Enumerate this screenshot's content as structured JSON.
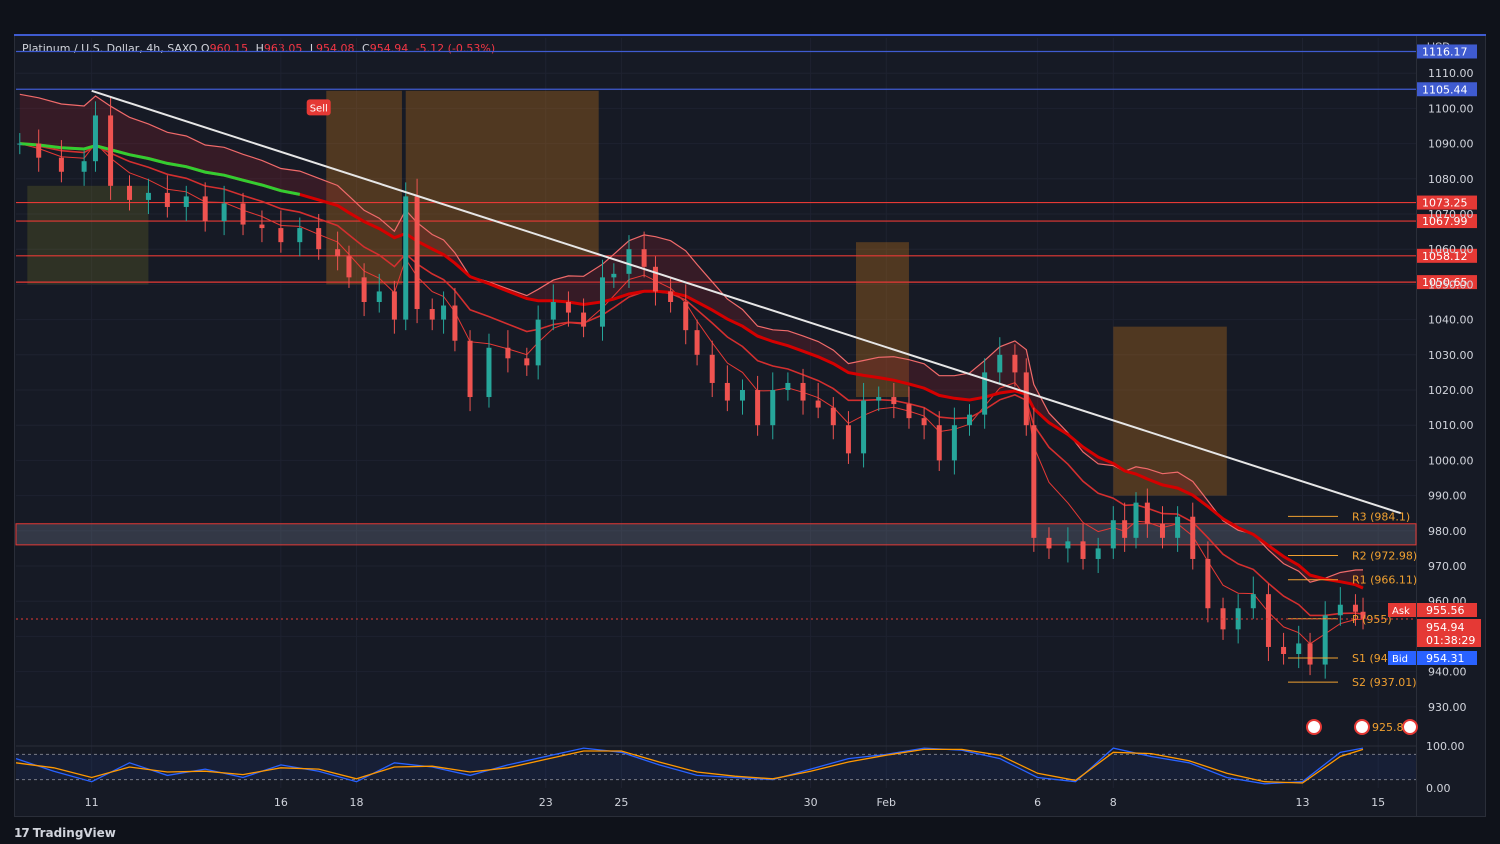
{
  "legend": {
    "symbol": "Platinum / U.S. Dollar, 4h, SAXO",
    "open_label": "O",
    "open": "960.15",
    "high_label": "H",
    "high": "963.05",
    "low_label": "L",
    "low": "954.08",
    "close_label": "C",
    "close": "954.94",
    "change": "-5.12 (-0.53%)"
  },
  "axis_currency": "USD",
  "branding": {
    "logo": "17",
    "name": "TradingView"
  },
  "colors": {
    "background": "#161a25",
    "bull": "#26a69a",
    "bear": "#ef5350",
    "resistance": "#e53935",
    "trendline": "#e6e6e6",
    "ema_green": "#32cd32",
    "pivot": "#f0a030",
    "price_tag": "#e53935",
    "bid": "#2962ff",
    "blue_level": "#3f5bd0"
  },
  "chart_data": {
    "type": "candlestick",
    "title": "Platinum / U.S. Dollar, 4h, SAXO",
    "ylim": [
      920,
      1120
    ],
    "y_ticks": [
      930,
      940,
      950,
      960,
      970,
      980,
      990,
      1000,
      1010,
      1020,
      1030,
      1040,
      1050,
      1060,
      1070,
      1080,
      1090,
      1100,
      1110
    ],
    "y_tick_labels": [
      "930.00",
      "940.00",
      "950.00",
      "960.00",
      "970.00",
      "980.00",
      "990.00",
      "1000.00",
      "1010.00",
      "1020.00",
      "1030.00",
      "1040.00",
      "1050.00",
      "1060.00",
      "1070.00",
      "1080.00",
      "1090.00",
      "1100.00",
      "1110.00"
    ],
    "x_ticks": [
      {
        "label": "11",
        "day": 11
      },
      {
        "label": "16",
        "day": 16
      },
      {
        "label": "18",
        "day": 18
      },
      {
        "label": "23",
        "day": 23
      },
      {
        "label": "25",
        "day": 25
      },
      {
        "label": "30",
        "day": 30
      },
      {
        "label": "Feb",
        "day": 32
      },
      {
        "label": "6",
        "day": 36
      },
      {
        "label": "8",
        "day": 38
      },
      {
        "label": "13",
        "day": 43
      },
      {
        "label": "15",
        "day": 45
      }
    ],
    "x_range": [
      9,
      46
    ],
    "close_path": [
      [
        9.1,
        1090
      ],
      [
        9.6,
        1086
      ],
      [
        10.2,
        1082
      ],
      [
        10.8,
        1085
      ],
      [
        11.1,
        1098
      ],
      [
        11.5,
        1078
      ],
      [
        12.0,
        1074
      ],
      [
        12.5,
        1076
      ],
      [
        13.0,
        1072
      ],
      [
        13.5,
        1075
      ],
      [
        14.0,
        1068
      ],
      [
        14.5,
        1073
      ],
      [
        15.0,
        1067
      ],
      [
        15.5,
        1066
      ],
      [
        16.0,
        1062
      ],
      [
        16.5,
        1066
      ],
      [
        17.0,
        1060
      ],
      [
        17.5,
        1058
      ],
      [
        17.8,
        1052
      ],
      [
        18.2,
        1045
      ],
      [
        18.6,
        1048
      ],
      [
        19.0,
        1040
      ],
      [
        19.3,
        1075
      ],
      [
        19.6,
        1043
      ],
      [
        20.0,
        1040
      ],
      [
        20.3,
        1044
      ],
      [
        20.6,
        1034
      ],
      [
        21.0,
        1018
      ],
      [
        21.5,
        1032
      ],
      [
        22.0,
        1029
      ],
      [
        22.5,
        1027
      ],
      [
        22.8,
        1040
      ],
      [
        23.2,
        1045
      ],
      [
        23.6,
        1042
      ],
      [
        24.0,
        1038
      ],
      [
        24.5,
        1052
      ],
      [
        24.8,
        1053
      ],
      [
        25.2,
        1060
      ],
      [
        25.6,
        1055
      ],
      [
        25.9,
        1048
      ],
      [
        26.3,
        1045
      ],
      [
        26.7,
        1037
      ],
      [
        27.0,
        1030
      ],
      [
        27.4,
        1022
      ],
      [
        27.8,
        1017
      ],
      [
        28.2,
        1020
      ],
      [
        28.6,
        1010
      ],
      [
        29.0,
        1020
      ],
      [
        29.4,
        1022
      ],
      [
        29.8,
        1017
      ],
      [
        30.2,
        1015
      ],
      [
        30.6,
        1010
      ],
      [
        31.0,
        1002
      ],
      [
        31.4,
        1017
      ],
      [
        31.8,
        1018
      ],
      [
        32.2,
        1016
      ],
      [
        32.6,
        1012
      ],
      [
        33.0,
        1010
      ],
      [
        33.4,
        1000
      ],
      [
        33.8,
        1010
      ],
      [
        34.2,
        1013
      ],
      [
        34.6,
        1025
      ],
      [
        35.0,
        1030
      ],
      [
        35.4,
        1025
      ],
      [
        35.7,
        1010
      ],
      [
        35.9,
        978
      ],
      [
        36.3,
        975
      ],
      [
        36.8,
        977
      ],
      [
        37.2,
        972
      ],
      [
        37.6,
        975
      ],
      [
        38.0,
        983
      ],
      [
        38.3,
        978
      ],
      [
        38.6,
        988
      ],
      [
        38.9,
        982
      ],
      [
        39.3,
        978
      ],
      [
        39.7,
        984
      ],
      [
        40.1,
        972
      ],
      [
        40.5,
        958
      ],
      [
        40.9,
        952
      ],
      [
        41.3,
        958
      ],
      [
        41.7,
        962
      ],
      [
        42.1,
        947
      ],
      [
        42.5,
        945
      ],
      [
        42.9,
        948
      ],
      [
        43.2,
        942
      ],
      [
        43.6,
        956
      ],
      [
        44.0,
        959
      ],
      [
        44.4,
        957
      ],
      [
        44.6,
        955
      ]
    ],
    "horizontal_levels": [
      {
        "value": 1116.17,
        "label": "1116.17",
        "color": "#3f5bd0",
        "style": "solid"
      },
      {
        "value": 1105.44,
        "label": "1105.44",
        "color": "#3f5bd0",
        "style": "solid"
      },
      {
        "value": 1073.25,
        "label": "1073.25",
        "color": "#e53935",
        "style": "solid"
      },
      {
        "value": 1067.99,
        "label": "1067.99",
        "color": "#e53935",
        "style": "solid"
      },
      {
        "value": 1058.12,
        "label": "1058.12",
        "color": "#e53935",
        "style": "solid"
      },
      {
        "value": 1050.65,
        "label": "1050.65",
        "color": "#e53935",
        "style": "solid"
      }
    ],
    "pivots": [
      {
        "label": "R3 (984.1)",
        "value": 984.1
      },
      {
        "label": "R2 (972.98)",
        "value": 972.98
      },
      {
        "label": "R1 (966.11)",
        "value": 966.11
      },
      {
        "label": "P (955)",
        "value": 955
      },
      {
        "label": "S1 (943.88)",
        "value": 943.88
      },
      {
        "label": "S2 (937.01)",
        "value": 937.01
      }
    ],
    "support_zone": [
      976,
      982
    ],
    "trendline": [
      [
        11.0,
        1105
      ],
      [
        45.6,
        985
      ]
    ],
    "prices": {
      "ask_label": "Ask",
      "ask": "955.56",
      "last": "954.94",
      "countdown": "01:38:29",
      "bid_label": "Bid",
      "bid": "954.31",
      "event_value": "925.8"
    },
    "annotation": {
      "label": "Sell",
      "day": 17.0,
      "value": 1100
    },
    "oscillator": {
      "ylim": [
        0,
        100
      ],
      "ticks": [
        "100.00",
        "0.00"
      ],
      "k": [
        [
          9,
          70
        ],
        [
          10,
          40
        ],
        [
          11,
          15
        ],
        [
          12,
          60
        ],
        [
          13,
          30
        ],
        [
          14,
          45
        ],
        [
          15,
          25
        ],
        [
          16,
          55
        ],
        [
          17,
          40
        ],
        [
          18,
          15
        ],
        [
          19,
          60
        ],
        [
          20,
          50
        ],
        [
          21,
          30
        ],
        [
          22,
          55
        ],
        [
          23,
          75
        ],
        [
          24,
          95
        ],
        [
          25,
          85
        ],
        [
          26,
          55
        ],
        [
          27,
          30
        ],
        [
          28,
          25
        ],
        [
          29,
          20
        ],
        [
          30,
          45
        ],
        [
          31,
          70
        ],
        [
          32,
          80
        ],
        [
          33,
          95
        ],
        [
          34,
          90
        ],
        [
          35,
          70
        ],
        [
          36,
          25
        ],
        [
          37,
          15
        ],
        [
          38,
          95
        ],
        [
          39,
          75
        ],
        [
          40,
          60
        ],
        [
          41,
          25
        ],
        [
          42,
          10
        ],
        [
          43,
          15
        ],
        [
          44,
          85
        ],
        [
          44.6,
          95
        ]
      ],
      "d": [
        [
          9,
          60
        ],
        [
          10,
          48
        ],
        [
          11,
          25
        ],
        [
          12,
          50
        ],
        [
          13,
          38
        ],
        [
          14,
          40
        ],
        [
          15,
          32
        ],
        [
          16,
          48
        ],
        [
          17,
          45
        ],
        [
          18,
          22
        ],
        [
          19,
          50
        ],
        [
          20,
          52
        ],
        [
          21,
          38
        ],
        [
          22,
          48
        ],
        [
          23,
          68
        ],
        [
          24,
          88
        ],
        [
          25,
          88
        ],
        [
          26,
          62
        ],
        [
          27,
          38
        ],
        [
          28,
          28
        ],
        [
          29,
          22
        ],
        [
          30,
          40
        ],
        [
          31,
          62
        ],
        [
          32,
          78
        ],
        [
          33,
          92
        ],
        [
          34,
          92
        ],
        [
          35,
          78
        ],
        [
          36,
          35
        ],
        [
          37,
          18
        ],
        [
          38,
          85
        ],
        [
          39,
          82
        ],
        [
          40,
          65
        ],
        [
          41,
          35
        ],
        [
          42,
          15
        ],
        [
          43,
          12
        ],
        [
          44,
          75
        ],
        [
          44.6,
          92
        ]
      ]
    }
  }
}
